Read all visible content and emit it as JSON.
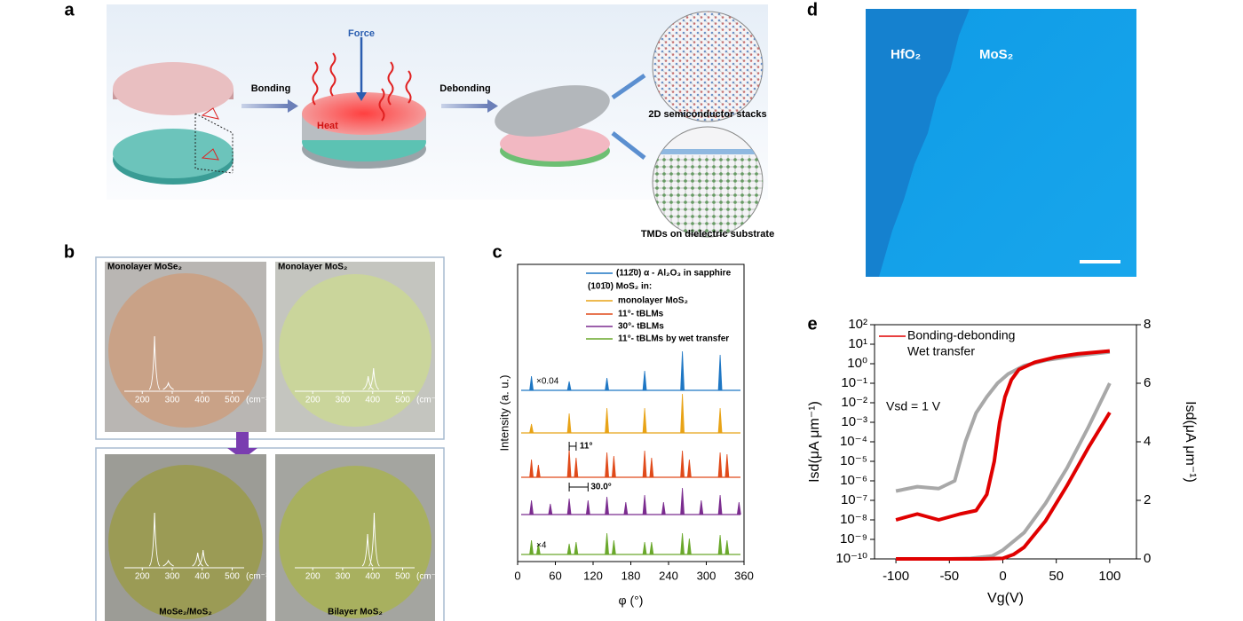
{
  "panel_labels": [
    "a",
    "b",
    "c",
    "d",
    "e"
  ],
  "a": {
    "force": "Force",
    "heat": "Heat",
    "bonding": "Bonding",
    "debonding": "Debonding",
    "stacks": "2D semiconductor stacks",
    "tmds": "TMDs on dielectric substrate"
  },
  "b": {
    "raman_axis": {
      "xlim": [
        140,
        540
      ],
      "xticks": [
        200,
        300,
        400,
        500
      ],
      "unit": "(cm⁻¹)"
    },
    "images": [
      {
        "title": "Monolayer MoSe₂",
        "peaks": {
          "x": [
            241,
            287
          ],
          "values": [
            1,
            0.12
          ]
        }
      },
      {
        "title": "Monolayer MoS₂",
        "peaks": {
          "x": [
            385,
            403
          ],
          "values": [
            0.25,
            0.4
          ]
        }
      },
      {
        "title": "MoSe₂/MoS₂",
        "peaks": {
          "x": [
            241,
            287,
            385,
            403
          ],
          "values": [
            1,
            0.1,
            0.25,
            0.3
          ]
        }
      },
      {
        "title": "Bilayer MoS₂",
        "peaks": {
          "x": [
            383,
            405
          ],
          "values": [
            0.6,
            1
          ]
        }
      }
    ]
  },
  "d": {
    "left_label": "HfO₂",
    "right_label": "MoS₂"
  },
  "chart_data": [
    {
      "type": "spectrum",
      "xlabel": "φ (°)",
      "ylabel": "Intensity (a. u.)",
      "xlim": [
        0,
        360
      ],
      "xticks": [
        0,
        60,
        120,
        180,
        240,
        300,
        360
      ],
      "legend_heading": "(101̄0) MoS₂ in:",
      "annotations": [
        "11°",
        "30.0°"
      ],
      "series": [
        {
          "name": "(112̄0) α - Al₂O₃ in sapphire",
          "color": "#1f77c4",
          "scale_label": "×0.04",
          "x": [
            22,
            82,
            142,
            202,
            262,
            322
          ],
          "values": [
            0.4,
            0.25,
            0.35,
            0.55,
            1.1,
            1.0
          ]
        },
        {
          "name": "monolayer MoS₂",
          "color": "#e8a317",
          "x": [
            22,
            82,
            142,
            202,
            262,
            322
          ],
          "values": [
            0.25,
            0.55,
            0.7,
            0.7,
            1.1,
            0.7
          ]
        },
        {
          "name": "11°- tBLMs",
          "color": "#e04a1a",
          "x": [
            22,
            33,
            82,
            93,
            142,
            153,
            202,
            213,
            262,
            273,
            322,
            333
          ],
          "values": [
            0.5,
            0.35,
            0.8,
            0.55,
            0.7,
            0.6,
            0.75,
            0.55,
            0.75,
            0.5,
            0.7,
            0.65
          ]
        },
        {
          "name": "30°- tBLMs",
          "color": "#7b2c8f",
          "x": [
            22,
            52,
            82,
            112,
            142,
            172,
            202,
            232,
            262,
            292,
            322,
            352
          ],
          "values": [
            0.4,
            0.3,
            0.45,
            0.4,
            0.5,
            0.35,
            0.55,
            0.35,
            0.75,
            0.4,
            0.55,
            0.35
          ]
        },
        {
          "name": "11°- tBLMs by wet transfer",
          "color": "#6aa82c",
          "scale_label": "×4",
          "x": [
            22,
            33,
            82,
            93,
            142,
            153,
            202,
            213,
            262,
            273,
            322,
            333
          ],
          "values": [
            0.4,
            0.3,
            0.3,
            0.35,
            0.6,
            0.4,
            0.35,
            0.35,
            0.6,
            0.45,
            0.55,
            0.4
          ]
        }
      ]
    },
    {
      "type": "line",
      "xlabel": "Vg(V)",
      "ylabel": "Isd(μA μm⁻¹)",
      "y2label": "Isd(μA μm⁻¹)",
      "annotation": "Vsd = 1 V",
      "xlim": [
        -120,
        125
      ],
      "xticks": [
        -100,
        -50,
        0,
        50,
        100
      ],
      "yscale": "log",
      "ylim": [
        1e-10,
        100
      ],
      "yticks": [
        {
          "value": 1e-10,
          "label": "10⁻¹⁰"
        },
        {
          "value": 1e-09,
          "label": "10⁻⁹"
        },
        {
          "value": 1e-08,
          "label": "10⁻⁸"
        },
        {
          "value": 1e-07,
          "label": "10⁻⁷"
        },
        {
          "value": 1e-06,
          "label": "10⁻⁶"
        },
        {
          "value": 1e-05,
          "label": "10⁻⁵"
        },
        {
          "value": 0.0001,
          "label": "10⁻⁴"
        },
        {
          "value": 0.001,
          "label": "10⁻³"
        },
        {
          "value": 0.01,
          "label": "10⁻²"
        },
        {
          "value": 0.1,
          "label": "10⁻¹"
        },
        {
          "value": 1,
          "label": "10⁰"
        },
        {
          "value": 10,
          "label": "10¹"
        },
        {
          "value": 100,
          "label": "10²"
        }
      ],
      "y2lim": [
        0,
        8
      ],
      "y2ticks": [
        0,
        2,
        4,
        6,
        8
      ],
      "series": [
        {
          "name": "Wet transfer",
          "color": "#a8a8a8",
          "x": [
            -100,
            -80,
            -60,
            -45,
            -35,
            -25,
            -15,
            -5,
            5,
            20,
            40,
            60,
            80,
            100
          ],
          "values": [
            3e-07,
            5e-07,
            4e-07,
            1e-06,
            0.0001,
            0.003,
            0.02,
            0.1,
            0.3,
            0.8,
            1.5,
            2.2,
            3,
            4
          ]
        },
        {
          "color": "#a8a8a8",
          "axis": "y2",
          "x": [
            -100,
            -50,
            -30,
            -10,
            0,
            20,
            40,
            60,
            80,
            100
          ],
          "values": [
            0,
            0,
            0.02,
            0.1,
            0.3,
            0.9,
            1.9,
            3.1,
            4.5,
            6.0
          ]
        },
        {
          "name": "Bonding-debonding",
          "color": "#e00000",
          "x": [
            -100,
            -80,
            -60,
            -40,
            -25,
            -15,
            -8,
            -3,
            2,
            8,
            15,
            30,
            50,
            70,
            100
          ],
          "values": [
            1e-08,
            2e-08,
            1e-08,
            2e-08,
            3e-08,
            2e-07,
            1e-05,
            0.001,
            0.02,
            0.15,
            0.5,
            1.2,
            2.2,
            3.2,
            4.5
          ]
        },
        {
          "color": "#e00000",
          "axis": "y2",
          "x": [
            -100,
            -40,
            -20,
            0,
            10,
            20,
            40,
            60,
            80,
            100
          ],
          "values": [
            0,
            0,
            0,
            0.02,
            0.15,
            0.4,
            1.3,
            2.5,
            3.8,
            5.0
          ]
        }
      ]
    }
  ]
}
